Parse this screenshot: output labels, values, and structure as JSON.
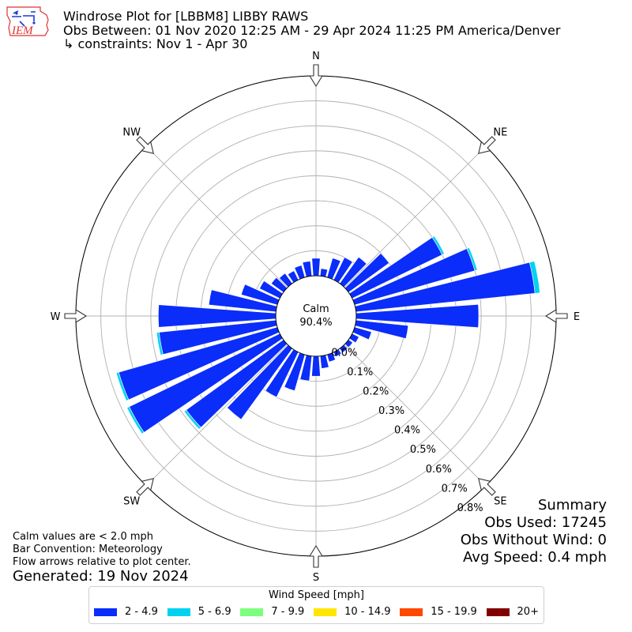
{
  "header": {
    "title": "Windrose Plot for [LBBM8] LIBBY RAWS",
    "obs_between": "Obs Between: 01 Nov 2020 12:25 AM - 29 Apr 2024 11:25 PM America/Denver",
    "constraints": "↳ constraints: Nov 1 - Apr 30"
  },
  "logo": {
    "text": "IEM",
    "icon": "iem-logo-icon"
  },
  "center_label": {
    "title": "Calm",
    "value": "90.4%"
  },
  "footer_notes": {
    "calm_note": "Calm values are < 2.0 mph",
    "bar_convention": "Bar Convention: Meteorology",
    "arrow_note": "Flow arrows relative to plot center.",
    "generated": "Generated: 19 Nov 2024"
  },
  "summary": {
    "heading": "Summary",
    "obs_used": "Obs Used: 17245",
    "obs_without_wind": "Obs Without Wind: 0",
    "avg_speed": "Avg Speed: 0.4 mph"
  },
  "legend": {
    "title": "Wind Speed [mph]",
    "items": [
      {
        "label": "2 - 4.9",
        "color": "#0a2dfa"
      },
      {
        "label": "5 - 6.9",
        "color": "#00d2f0"
      },
      {
        "label": "7 - 9.9",
        "color": "#7dff7d"
      },
      {
        "label": "10 - 14.9",
        "color": "#ffe600"
      },
      {
        "label": "15 - 19.9",
        "color": "#ff4800"
      },
      {
        "label": "20+",
        "color": "#800000"
      }
    ]
  },
  "chart_data": {
    "type": "windrose",
    "bar_convention": "meteorology",
    "compass_labels": [
      "N",
      "NE",
      "E",
      "SE",
      "S",
      "SW",
      "W",
      "NW"
    ],
    "radial_ticks": [
      "0.0%",
      "0.1%",
      "0.2%",
      "0.3%",
      "0.4%",
      "0.5%",
      "0.6%",
      "0.7%",
      "0.8%"
    ],
    "radial_max": 0.8,
    "directions_deg": [
      0,
      10,
      20,
      30,
      40,
      50,
      60,
      70,
      80,
      90,
      100,
      110,
      120,
      130,
      140,
      150,
      160,
      170,
      180,
      190,
      200,
      210,
      220,
      230,
      240,
      250,
      260,
      270,
      280,
      290,
      300,
      310,
      320,
      330,
      340,
      350
    ],
    "series": [
      {
        "name": "2 - 4.9",
        "color": "#0a2dfa",
        "values": [
          0.07,
          0.03,
          0.08,
          0.1,
          0.13,
          0.2,
          0.4,
          0.5,
          0.72,
          0.49,
          0.21,
          0.07,
          0.03,
          0.02,
          0.02,
          0.02,
          0.03,
          0.05,
          0.08,
          0.1,
          0.15,
          0.2,
          0.35,
          0.48,
          0.67,
          0.66,
          0.47,
          0.47,
          0.27,
          0.15,
          0.09,
          0.06,
          0.05,
          0.04,
          0.05,
          0.06
        ]
      },
      {
        "name": "5 - 6.9",
        "color": "#00d2f0",
        "values": [
          0,
          0,
          0,
          0,
          0,
          0,
          0.01,
          0.01,
          0.02,
          0,
          0,
          0,
          0,
          0,
          0,
          0,
          0,
          0,
          0,
          0,
          0,
          0,
          0,
          0.01,
          0.01,
          0.01,
          0.01,
          0,
          0,
          0,
          0,
          0,
          0,
          0,
          0,
          0
        ]
      },
      {
        "name": "7 - 9.9",
        "color": "#7dff7d",
        "values": [
          0,
          0,
          0,
          0,
          0,
          0,
          0,
          0,
          0,
          0,
          0,
          0,
          0,
          0,
          0,
          0,
          0,
          0,
          0,
          0,
          0,
          0,
          0,
          0,
          0,
          0,
          0,
          0,
          0,
          0,
          0,
          0,
          0,
          0,
          0,
          0
        ]
      },
      {
        "name": "10 - 14.9",
        "color": "#ffe600",
        "values": [
          0,
          0,
          0,
          0,
          0,
          0,
          0,
          0,
          0,
          0,
          0,
          0,
          0,
          0,
          0,
          0,
          0,
          0,
          0,
          0,
          0,
          0,
          0,
          0,
          0,
          0,
          0,
          0,
          0,
          0,
          0,
          0,
          0,
          0,
          0,
          0
        ]
      },
      {
        "name": "15 - 19.9",
        "color": "#ff4800",
        "values": [
          0,
          0,
          0,
          0,
          0,
          0,
          0,
          0,
          0,
          0,
          0,
          0,
          0,
          0,
          0,
          0,
          0,
          0,
          0,
          0,
          0,
          0,
          0,
          0,
          0,
          0,
          0,
          0,
          0,
          0,
          0,
          0,
          0,
          0,
          0,
          0
        ]
      },
      {
        "name": "20+",
        "color": "#800000",
        "values": [
          0,
          0,
          0,
          0,
          0,
          0,
          0,
          0,
          0,
          0,
          0,
          0,
          0,
          0,
          0,
          0,
          0,
          0,
          0,
          0,
          0,
          0,
          0,
          0,
          0,
          0,
          0,
          0,
          0,
          0,
          0,
          0,
          0,
          0,
          0,
          0
        ]
      }
    ]
  }
}
